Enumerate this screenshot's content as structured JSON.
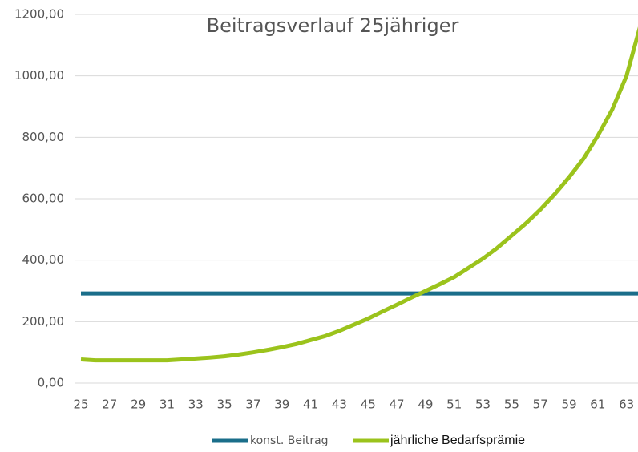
{
  "chart_data": {
    "type": "line",
    "title": "Beitragsverlauf 25jähriger",
    "x": [
      25,
      26,
      27,
      28,
      29,
      30,
      31,
      32,
      33,
      34,
      35,
      36,
      37,
      38,
      39,
      40,
      41,
      42,
      43,
      44,
      45,
      46,
      47,
      48,
      49,
      50,
      51,
      52,
      53,
      54,
      55,
      56,
      57,
      58,
      59,
      60,
      61,
      62,
      63,
      64
    ],
    "series": [
      {
        "name": "konst. Beitrag",
        "color": "#1a6e8a",
        "values": [
          292,
          292,
          292,
          292,
          292,
          292,
          292,
          292,
          292,
          292,
          292,
          292,
          292,
          292,
          292,
          292,
          292,
          292,
          292,
          292,
          292,
          292,
          292,
          292,
          292,
          292,
          292,
          292,
          292,
          292,
          292,
          292,
          292,
          292,
          292,
          292,
          292,
          292,
          292,
          292
        ]
      },
      {
        "name": "jährliche Bedarfsprämie",
        "color": "#9bc31c",
        "values": [
          77,
          74,
          74,
          74,
          74,
          74,
          74,
          77,
          80,
          83,
          87,
          93,
          100,
          108,
          117,
          127,
          140,
          153,
          170,
          190,
          210,
          233,
          255,
          278,
          300,
          322,
          345,
          375,
          405,
          440,
          480,
          520,
          565,
          615,
          670,
          730,
          805,
          890,
          1000,
          1170
        ]
      }
    ],
    "xlim": [
      25,
      63.8
    ],
    "xticks": [
      25,
      27,
      29,
      31,
      33,
      35,
      37,
      39,
      41,
      43,
      45,
      47,
      49,
      51,
      53,
      55,
      57,
      59,
      61,
      63
    ],
    "ylim": [
      0,
      1200
    ],
    "yticks": [
      {
        "value": 0,
        "label": "0,00"
      },
      {
        "value": 200,
        "label": "200,00"
      },
      {
        "value": 400,
        "label": "400,00"
      },
      {
        "value": 600,
        "label": "600,00"
      },
      {
        "value": 800,
        "label": "800,00"
      },
      {
        "value": 1000,
        "label": "1000,00"
      },
      {
        "value": 1200,
        "label": "1200,00"
      }
    ],
    "grid": true,
    "legend": "bottom"
  }
}
